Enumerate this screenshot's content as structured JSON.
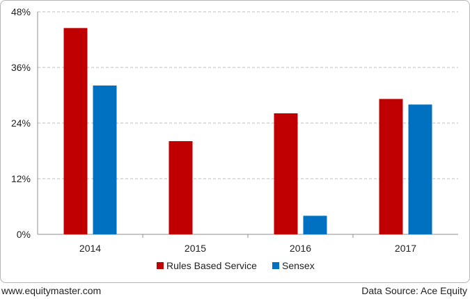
{
  "chart_data": {
    "type": "bar",
    "categories": [
      "2014",
      "2015",
      "2016",
      "2017"
    ],
    "series": [
      {
        "name": "Rules Based  Service",
        "color": "#c00000",
        "values": [
          44.5,
          20.1,
          26.1,
          29.2
        ]
      },
      {
        "name": "Sensex",
        "color": "#0070c0",
        "values": [
          32.1,
          null,
          4.0,
          28.0
        ]
      }
    ],
    "ylim": [
      0,
      48
    ],
    "yticks": [
      0,
      12,
      24,
      36,
      48
    ],
    "ytick_labels": [
      "0%",
      "12%",
      "24%",
      "36%",
      "48%"
    ],
    "grid": true,
    "legend_position": "bottom"
  },
  "footer": {
    "left": "www.equitymaster.com",
    "right": "Data Source: Ace Equity"
  }
}
